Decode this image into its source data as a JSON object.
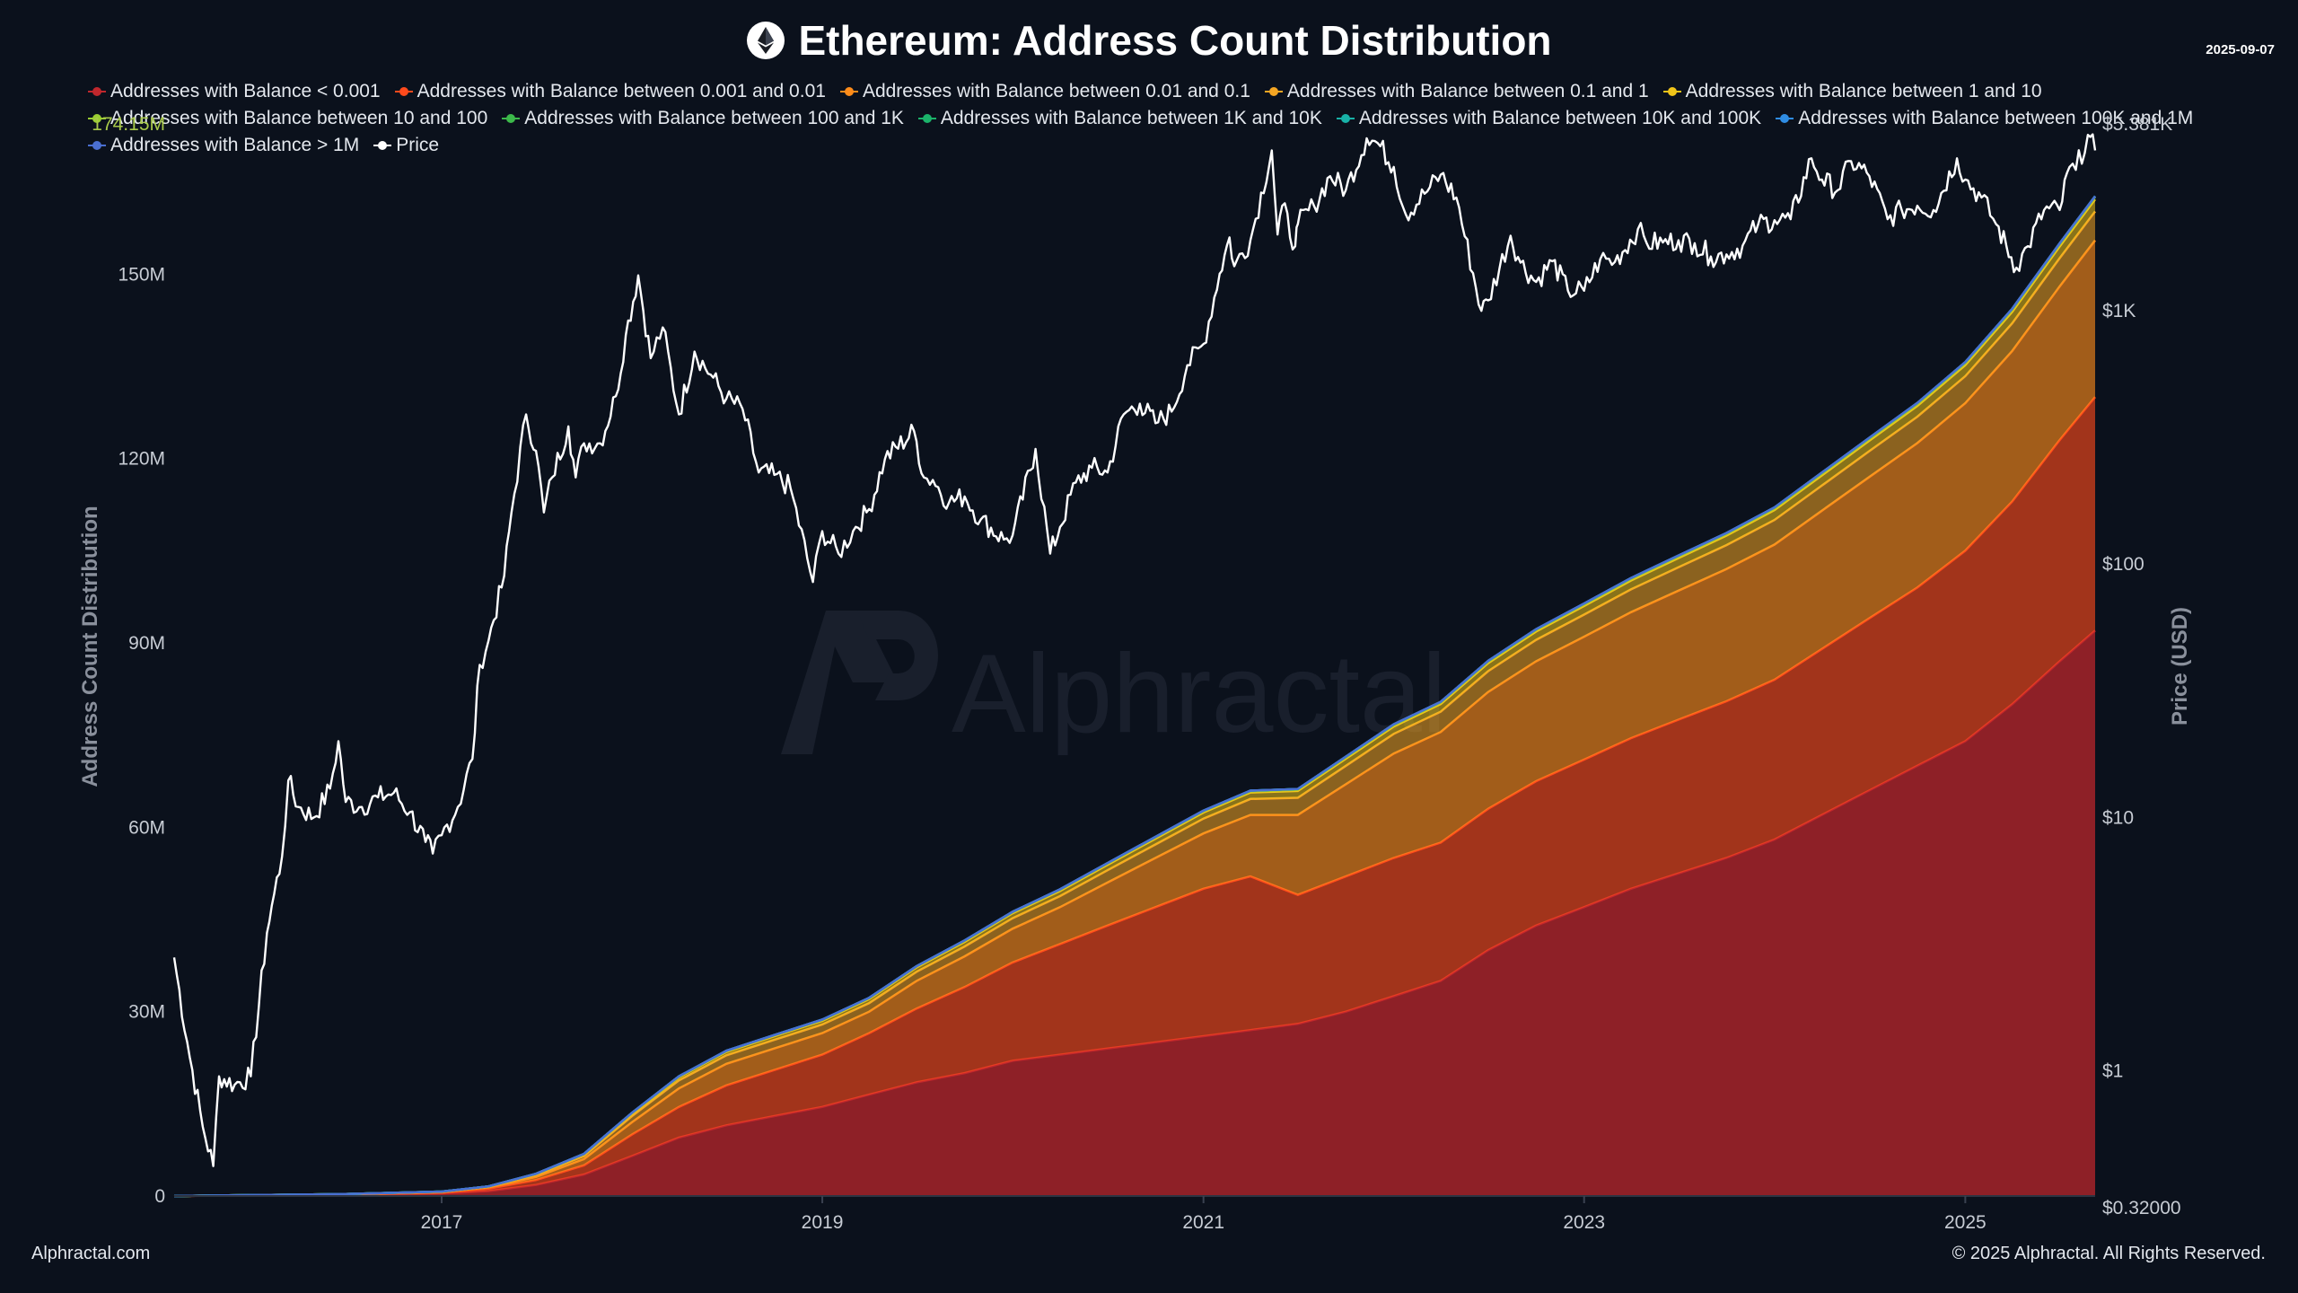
{
  "header": {
    "title": "Ethereum: Address Count Distribution",
    "date": "2025-09-07"
  },
  "footer": {
    "site": "Alphractal.com",
    "copyright": "© 2025 Alphractal. All Rights Reserved."
  },
  "watermark": "Alphractal",
  "chart_data": {
    "type": "area",
    "title": "Ethereum: Address Count Distribution",
    "ylabel": "Address Count Distribution",
    "y2label": "Price (USD)",
    "ylim": [
      0,
      174150000
    ],
    "y_ticks": [
      {
        "value": 0,
        "label": "0"
      },
      {
        "value": 30000000,
        "label": "30M"
      },
      {
        "value": 60000000,
        "label": "60M"
      },
      {
        "value": 90000000,
        "label": "90M"
      },
      {
        "value": 120000000,
        "label": "120M"
      },
      {
        "value": 150000000,
        "label": "150M"
      }
    ],
    "y_max_label": "174.15M",
    "y2_scale": "log",
    "y2lim": [
      0.32,
      5381
    ],
    "y2_ticks": [
      {
        "value": 1,
        "label": "$1"
      },
      {
        "value": 10,
        "label": "$10"
      },
      {
        "value": 100,
        "label": "$100"
      },
      {
        "value": 1000,
        "label": "$1K"
      }
    ],
    "y2_min_label": "$0.32000",
    "y2_max_label": "$5.381K",
    "xlim": [
      "2015-08-07",
      "2025-09-07"
    ],
    "x_ticks": [
      {
        "value": "2017-01-01",
        "label": "2017"
      },
      {
        "value": "2019-01-01",
        "label": "2019"
      },
      {
        "value": "2021-01-01",
        "label": "2021"
      },
      {
        "value": "2023-01-01",
        "label": "2023"
      },
      {
        "value": "2025-01-01",
        "label": "2025"
      }
    ],
    "legend_position": "top",
    "grid": false,
    "x": [
      "2015-08-07",
      "2016-01-01",
      "2016-07-01",
      "2017-01-01",
      "2017-04-01",
      "2017-07-01",
      "2017-10-01",
      "2018-01-01",
      "2018-04-01",
      "2018-07-01",
      "2018-10-01",
      "2019-01-01",
      "2019-04-01",
      "2019-07-01",
      "2019-10-01",
      "2020-01-01",
      "2020-04-01",
      "2020-07-01",
      "2020-10-01",
      "2021-01-01",
      "2021-04-01",
      "2021-07-01",
      "2021-10-01",
      "2022-01-01",
      "2022-04-01",
      "2022-07-01",
      "2022-10-01",
      "2023-01-01",
      "2023-04-01",
      "2023-07-01",
      "2023-10-01",
      "2024-01-01",
      "2024-04-01",
      "2024-07-01",
      "2024-10-01",
      "2025-01-01",
      "2025-04-01",
      "2025-07-01",
      "2025-09-07"
    ],
    "series": [
      {
        "name": "Addresses with Balance < 0.001",
        "color": "#c0272d",
        "values": [
          0,
          0.1,
          0.2,
          0.4,
          0.8,
          1.8,
          3.5,
          6.5,
          9.5,
          11.5,
          13.0,
          14.5,
          16.5,
          18.5,
          20.0,
          22.0,
          23.0,
          24.0,
          25.0,
          26.0,
          27.0,
          28.0,
          30.0,
          32.5,
          35.0,
          40.0,
          44.0,
          47.0,
          50.0,
          52.5,
          55.0,
          58.0,
          62.0,
          66.0,
          70.0,
          74.0,
          80.0,
          87.0,
          92.0
        ]
      },
      {
        "name": "Addresses with Balance between 0.001 and 0.01",
        "color": "#ff4a1c",
        "values": [
          0,
          0.02,
          0.06,
          0.15,
          0.4,
          0.8,
          1.5,
          3.5,
          5.0,
          6.5,
          7.5,
          8.5,
          10.0,
          12.0,
          14.0,
          16.0,
          18.0,
          20.0,
          22.0,
          24.0,
          25.0,
          21.0,
          22.0,
          22.5,
          22.5,
          23.0,
          23.5,
          24.0,
          24.5,
          25.0,
          25.5,
          26.0,
          27.0,
          28.0,
          29.0,
          31.0,
          33.0,
          36.0,
          38.0
        ]
      },
      {
        "name": "Addresses with Balance between 0.01 and 0.1",
        "color": "#ff8c1a",
        "values": [
          0,
          0.01,
          0.03,
          0.08,
          0.2,
          0.5,
          1.0,
          2.0,
          3.0,
          3.5,
          3.5,
          3.5,
          3.5,
          4.5,
          5.0,
          5.5,
          6.0,
          7.0,
          8.0,
          9.0,
          10.0,
          13.0,
          15.0,
          17.0,
          18.0,
          19.0,
          19.5,
          20.0,
          20.5,
          21.0,
          21.5,
          22.0,
          22.5,
          23.0,
          23.5,
          24.0,
          24.5,
          25.0,
          25.5
        ]
      },
      {
        "name": "Addresses with Balance between 0.1 and 1",
        "color": "#f5a623",
        "values": [
          0,
          0.01,
          0.02,
          0.05,
          0.1,
          0.3,
          0.5,
          1.0,
          1.3,
          1.4,
          1.4,
          1.4,
          1.4,
          1.5,
          1.6,
          1.7,
          1.8,
          2.0,
          2.2,
          2.4,
          2.6,
          2.8,
          3.0,
          3.2,
          3.3,
          3.4,
          3.5,
          3.6,
          3.7,
          3.8,
          3.9,
          4.0,
          4.1,
          4.2,
          4.3,
          4.4,
          4.5,
          4.6,
          4.7
        ]
      },
      {
        "name": "Addresses with Balance between 1 and 10",
        "color": "#f0c419",
        "values": [
          0,
          0.01,
          0.01,
          0.03,
          0.05,
          0.15,
          0.25,
          0.4,
          0.5,
          0.55,
          0.6,
          0.6,
          0.65,
          0.7,
          0.75,
          0.8,
          0.85,
          0.9,
          0.95,
          1.0,
          1.05,
          1.1,
          1.15,
          1.2,
          1.25,
          1.3,
          1.35,
          1.4,
          1.45,
          1.5,
          1.55,
          1.6,
          1.65,
          1.7,
          1.75,
          1.8,
          1.85,
          1.9,
          1.95
        ]
      },
      {
        "name": "Addresses with Balance between 10 and 100",
        "color": "#9acd32",
        "values": [
          0,
          0,
          0,
          0.01,
          0.02,
          0.05,
          0.08,
          0.1,
          0.12,
          0.13,
          0.14,
          0.15,
          0.15,
          0.16,
          0.17,
          0.18,
          0.19,
          0.2,
          0.21,
          0.22,
          0.23,
          0.24,
          0.25,
          0.26,
          0.27,
          0.28,
          0.29,
          0.3,
          0.31,
          0.32,
          0.33,
          0.34,
          0.35,
          0.36,
          0.37,
          0.38,
          0.39,
          0.4,
          0.41
        ]
      },
      {
        "name": "Addresses with Balance between 100 and 1K",
        "color": "#3cb94a",
        "values": [
          0,
          0,
          0,
          0.005,
          0.01,
          0.02,
          0.03,
          0.04,
          0.05,
          0.05,
          0.05,
          0.05,
          0.05,
          0.05,
          0.06,
          0.06,
          0.06,
          0.06,
          0.07,
          0.07,
          0.07,
          0.07,
          0.08,
          0.08,
          0.08,
          0.08,
          0.08,
          0.09,
          0.09,
          0.09,
          0.09,
          0.09,
          0.1,
          0.1,
          0.1,
          0.1,
          0.1,
          0.1,
          0.1
        ]
      },
      {
        "name": "Addresses with Balance between 1K and 10K",
        "color": "#1bb36a",
        "values": [
          0,
          0,
          0,
          0.001,
          0.002,
          0.004,
          0.006,
          0.008,
          0.009,
          0.01,
          0.01,
          0.01,
          0.01,
          0.01,
          0.01,
          0.01,
          0.01,
          0.011,
          0.011,
          0.011,
          0.011,
          0.011,
          0.012,
          0.012,
          0.012,
          0.012,
          0.012,
          0.012,
          0.012,
          0.013,
          0.013,
          0.013,
          0.013,
          0.013,
          0.013,
          0.013,
          0.013,
          0.014,
          0.014
        ]
      },
      {
        "name": "Addresses with Balance between 10K and 100K",
        "color": "#18b2a8",
        "values": [
          0,
          0,
          0,
          0.0005,
          0.0008,
          0.001,
          0.0012,
          0.0013,
          0.0014,
          0.0014,
          0.0014,
          0.0014,
          0.0014,
          0.0014,
          0.0014,
          0.0014,
          0.0014,
          0.0014,
          0.0014,
          0.0014,
          0.0014,
          0.0014,
          0.0014,
          0.0014,
          0.0014,
          0.0014,
          0.0014,
          0.0014,
          0.0014,
          0.0014,
          0.0014,
          0.0014,
          0.0014,
          0.0014,
          0.0014,
          0.0014,
          0.0014,
          0.0014,
          0.0014
        ]
      },
      {
        "name": "Addresses with Balance between 100K and 1M",
        "color": "#2f8de4",
        "values": [
          0,
          0,
          0,
          0.0001,
          0.0001,
          0.0001,
          0.0002,
          0.0002,
          0.0002,
          0.0002,
          0.0002,
          0.0002,
          0.0002,
          0.0002,
          0.0002,
          0.0002,
          0.0002,
          0.0002,
          0.0002,
          0.0002,
          0.0002,
          0.0002,
          0.0002,
          0.0002,
          0.0002,
          0.0002,
          0.0002,
          0.0002,
          0.0002,
          0.0002,
          0.0002,
          0.0002,
          0.0002,
          0.0002,
          0.0002,
          0.0002,
          0.0002,
          0.0002,
          0.0002
        ]
      },
      {
        "name": "Addresses with Balance > 1M",
        "color": "#4a6fd1",
        "values": [
          0,
          0,
          0,
          0,
          0,
          0,
          0,
          0,
          0,
          0,
          0,
          0,
          0,
          0,
          0,
          0,
          0,
          0,
          0,
          0,
          0,
          0,
          0,
          0,
          0,
          0,
          0,
          0,
          0,
          0,
          0,
          0,
          0,
          0,
          0,
          0,
          0,
          0,
          0
        ]
      }
    ],
    "values_unit": "millions of addresses",
    "price": {
      "name": "Price",
      "color": "#ffffff",
      "axis": "y2",
      "points": [
        [
          "2015-08-07",
          2.8
        ],
        [
          "2015-09-01",
          1.3
        ],
        [
          "2015-10-01",
          0.6
        ],
        [
          "2015-10-21",
          0.42
        ],
        [
          "2015-11-01",
          0.95
        ],
        [
          "2015-12-01",
          0.88
        ],
        [
          "2016-01-01",
          0.95
        ],
        [
          "2016-02-01",
          3.5
        ],
        [
          "2016-02-15",
          5.0
        ],
        [
          "2016-03-01",
          7.0
        ],
        [
          "2016-03-13",
          14.0
        ],
        [
          "2016-04-01",
          11.0
        ],
        [
          "2016-05-01",
          10.0
        ],
        [
          "2016-06-01",
          13.0
        ],
        [
          "2016-06-17",
          20.0
        ],
        [
          "2016-07-01",
          11.5
        ],
        [
          "2016-08-01",
          11.0
        ],
        [
          "2016-09-01",
          12.0
        ],
        [
          "2016-10-01",
          12.5
        ],
        [
          "2016-11-01",
          10.5
        ],
        [
          "2016-12-01",
          8.0
        ],
        [
          "2016-12-15",
          7.2
        ],
        [
          "2017-01-01",
          8.5
        ],
        [
          "2017-02-01",
          11.0
        ],
        [
          "2017-03-01",
          17.0
        ],
        [
          "2017-03-15",
          40.0
        ],
        [
          "2017-04-01",
          50.0
        ],
        [
          "2017-05-01",
          90.0
        ],
        [
          "2017-05-15",
          160.0
        ],
        [
          "2017-06-12",
          390.0
        ],
        [
          "2017-07-01",
          280.0
        ],
        [
          "2017-07-16",
          160.0
        ],
        [
          "2017-08-01",
          220.0
        ],
        [
          "2017-09-01",
          350.0
        ],
        [
          "2017-09-15",
          220.0
        ],
        [
          "2017-10-01",
          300.0
        ],
        [
          "2017-11-01",
          300.0
        ],
        [
          "2017-12-01",
          460.0
        ],
        [
          "2017-12-20",
          800.0
        ],
        [
          "2018-01-13",
          1380.0
        ],
        [
          "2018-02-06",
          650.0
        ],
        [
          "2018-03-01",
          860.0
        ],
        [
          "2018-04-01",
          390.0
        ],
        [
          "2018-05-01",
          690.0
        ],
        [
          "2018-06-01",
          560.0
        ],
        [
          "2018-07-01",
          450.0
        ],
        [
          "2018-08-01",
          410.0
        ],
        [
          "2018-09-01",
          230.0
        ],
        [
          "2018-10-01",
          225.0
        ],
        [
          "2018-11-01",
          200.0
        ],
        [
          "2018-12-14",
          85.0
        ],
        [
          "2019-01-01",
          135.0
        ],
        [
          "2019-02-01",
          110.0
        ],
        [
          "2019-03-01",
          135.0
        ],
        [
          "2019-04-01",
          165.0
        ],
        [
          "2019-05-01",
          260.0
        ],
        [
          "2019-06-26",
          335.0
        ],
        [
          "2019-07-15",
          220.0
        ],
        [
          "2019-08-01",
          215.0
        ],
        [
          "2019-09-01",
          175.0
        ],
        [
          "2019-10-01",
          185.0
        ],
        [
          "2019-11-01",
          150.0
        ],
        [
          "2019-12-15",
          125.0
        ],
        [
          "2020-01-01",
          130.0
        ],
        [
          "2020-02-14",
          285.0
        ],
        [
          "2020-03-13",
          110.0
        ],
        [
          "2020-04-01",
          140.0
        ],
        [
          "2020-05-01",
          210.0
        ],
        [
          "2020-06-01",
          240.0
        ],
        [
          "2020-07-01",
          230.0
        ],
        [
          "2020-08-01",
          390.0
        ],
        [
          "2020-09-01",
          430.0
        ],
        [
          "2020-10-01",
          360.0
        ],
        [
          "2020-11-01",
          400.0
        ],
        [
          "2020-12-01",
          610.0
        ],
        [
          "2021-01-01",
          740.0
        ],
        [
          "2021-02-01",
          1400.0
        ],
        [
          "2021-02-20",
          1950.0
        ],
        [
          "2021-03-01",
          1500.0
        ],
        [
          "2021-04-01",
          1900.0
        ],
        [
          "2021-05-12",
          4300.0
        ],
        [
          "2021-05-23",
          2000.0
        ],
        [
          "2021-06-01",
          2600.0
        ],
        [
          "2021-06-26",
          1800.0
        ],
        [
          "2021-07-01",
          2200.0
        ],
        [
          "2021-08-01",
          2600.0
        ],
        [
          "2021-09-01",
          3400.0
        ],
        [
          "2021-10-01",
          3000.0
        ],
        [
          "2021-11-10",
          4800.0
        ],
        [
          "2021-12-01",
          4600.0
        ],
        [
          "2022-01-01",
          3700.0
        ],
        [
          "2022-01-24",
          2400.0
        ],
        [
          "2022-03-01",
          2900.0
        ],
        [
          "2022-04-01",
          3450.0
        ],
        [
          "2022-05-01",
          2800.0
        ],
        [
          "2022-06-18",
          1000.0
        ],
        [
          "2022-07-01",
          1100.0
        ],
        [
          "2022-08-13",
          1980.0
        ],
        [
          "2022-09-01",
          1550.0
        ],
        [
          "2022-10-01",
          1300.0
        ],
        [
          "2022-11-01",
          1570.0
        ],
        [
          "2022-12-01",
          1200.0
        ],
        [
          "2023-01-01",
          1200.0
        ],
        [
          "2023-02-01",
          1600.0
        ],
        [
          "2023-03-01",
          1560.0
        ],
        [
          "2023-04-14",
          2100.0
        ],
        [
          "2023-05-01",
          1850.0
        ],
        [
          "2023-06-01",
          1860.0
        ],
        [
          "2023-07-01",
          1900.0
        ],
        [
          "2023-08-01",
          1850.0
        ],
        [
          "2023-09-01",
          1640.0
        ],
        [
          "2023-10-01",
          1670.0
        ],
        [
          "2023-11-01",
          1810.0
        ],
        [
          "2023-12-01",
          2200.0
        ],
        [
          "2024-01-01",
          2280.0
        ],
        [
          "2024-02-01",
          2300.0
        ],
        [
          "2024-03-12",
          4000.0
        ],
        [
          "2024-04-01",
          3300.0
        ],
        [
          "2024-05-01",
          2990.0
        ],
        [
          "2024-05-27",
          3900.0
        ],
        [
          "2024-07-01",
          3400.0
        ],
        [
          "2024-08-05",
          2300.0
        ],
        [
          "2024-09-01",
          2500.0
        ],
        [
          "2024-10-01",
          2600.0
        ],
        [
          "2024-11-01",
          2500.0
        ],
        [
          "2024-12-16",
          4000.0
        ],
        [
          "2025-01-01",
          3300.0
        ],
        [
          "2025-02-01",
          2800.0
        ],
        [
          "2025-03-01",
          2200.0
        ],
        [
          "2025-04-09",
          1480.0
        ],
        [
          "2025-05-01",
          1800.0
        ],
        [
          "2025-06-01",
          2500.0
        ],
        [
          "2025-07-01",
          2500.0
        ],
        [
          "2025-07-20",
          3700.0
        ],
        [
          "2025-08-01",
          3600.0
        ],
        [
          "2025-08-24",
          4950.0
        ],
        [
          "2025-09-07",
          4300.0
        ]
      ]
    }
  }
}
